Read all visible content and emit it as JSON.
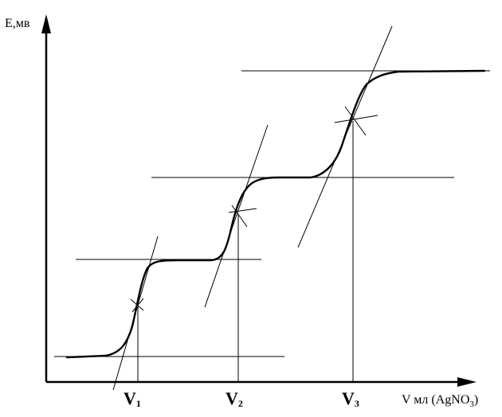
{
  "y_axis": {
    "label": "E,мв"
  },
  "x_axis": {
    "label_main": "V мл (AgNO",
    "label_sub": "3",
    "label_close": ")"
  },
  "equivalence_points": [
    {
      "letter": "V",
      "sub": "1"
    },
    {
      "letter": "V",
      "sub": "2"
    },
    {
      "letter": "V",
      "sub": "3"
    }
  ]
}
